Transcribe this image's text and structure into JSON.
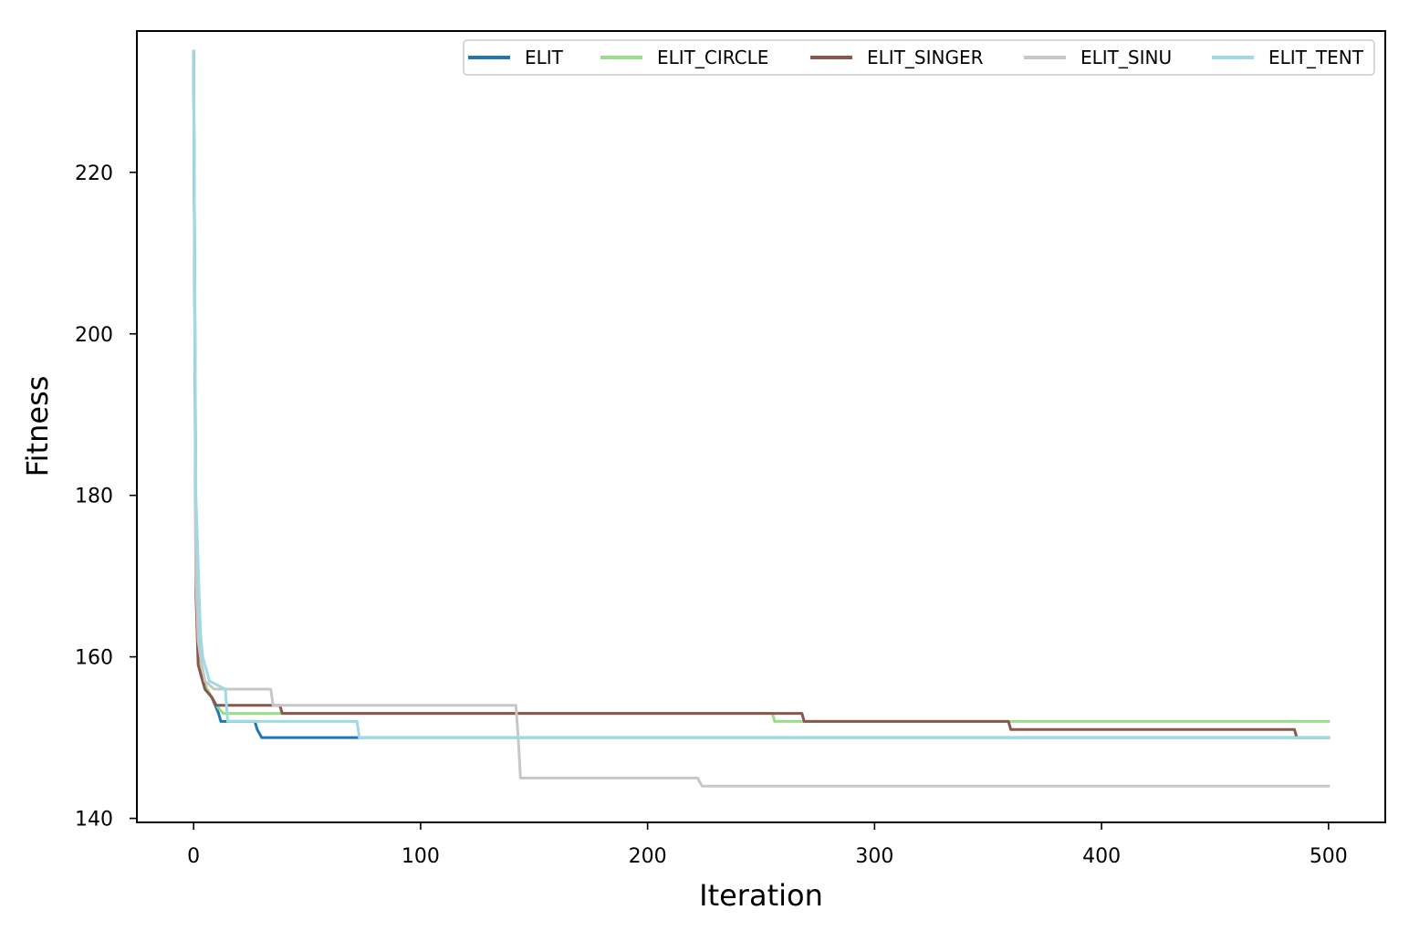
{
  "chart_data": {
    "type": "line",
    "title": "",
    "xlabel": "Iteration",
    "ylabel": "Fitness",
    "xlim": [
      -25,
      525
    ],
    "ylim": [
      139.5,
      237.5
    ],
    "xticks": [
      0,
      100,
      200,
      300,
      400,
      500
    ],
    "yticks": [
      140,
      160,
      180,
      200,
      220
    ],
    "grid": false,
    "legend": {
      "placement": "top-right",
      "columns": 5
    },
    "series": [
      {
        "name": "ELIT",
        "color": "#1f77b4",
        "points": [
          [
            0,
            235
          ],
          [
            1,
            175
          ],
          [
            2,
            163
          ],
          [
            3,
            158
          ],
          [
            5,
            156
          ],
          [
            8,
            155
          ],
          [
            11,
            153
          ],
          [
            12,
            152
          ],
          [
            27,
            152
          ],
          [
            28,
            151
          ],
          [
            30,
            150
          ],
          [
            500,
            150
          ]
        ]
      },
      {
        "name": "ELIT_CIRCLE",
        "color": "#98df8a",
        "points": [
          [
            0,
            235
          ],
          [
            1,
            175
          ],
          [
            2,
            165
          ],
          [
            3,
            158
          ],
          [
            6,
            156
          ],
          [
            10,
            154
          ],
          [
            13,
            153
          ],
          [
            255,
            153
          ],
          [
            256,
            152
          ],
          [
            500,
            152
          ]
        ]
      },
      {
        "name": "ELIT_SINGER",
        "color": "#8c564b",
        "points": [
          [
            0,
            235
          ],
          [
            1,
            168
          ],
          [
            2,
            159
          ],
          [
            3,
            158
          ],
          [
            5,
            156
          ],
          [
            8,
            155
          ],
          [
            10,
            154
          ],
          [
            38,
            154
          ],
          [
            39,
            153
          ],
          [
            268,
            153
          ],
          [
            269,
            152
          ],
          [
            359,
            152
          ],
          [
            360,
            151
          ],
          [
            485,
            151
          ],
          [
            486,
            150
          ],
          [
            500,
            150
          ]
        ]
      },
      {
        "name": "ELIT_SINU",
        "color": "#c7c7c7",
        "points": [
          [
            0,
            235
          ],
          [
            1,
            170
          ],
          [
            2,
            162
          ],
          [
            3,
            160
          ],
          [
            5,
            157
          ],
          [
            9,
            156
          ],
          [
            34,
            156
          ],
          [
            35,
            154
          ],
          [
            142,
            154
          ],
          [
            143,
            150
          ],
          [
            144,
            145
          ],
          [
            222,
            145
          ],
          [
            224,
            144
          ],
          [
            500,
            144
          ]
        ]
      },
      {
        "name": "ELIT_TENT",
        "color": "#9edae5",
        "points": [
          [
            0,
            235
          ],
          [
            1,
            180
          ],
          [
            3,
            163
          ],
          [
            4,
            160
          ],
          [
            7,
            157
          ],
          [
            14,
            156
          ],
          [
            15,
            152
          ],
          [
            72,
            152
          ],
          [
            73,
            150
          ],
          [
            500,
            150
          ]
        ]
      }
    ]
  }
}
